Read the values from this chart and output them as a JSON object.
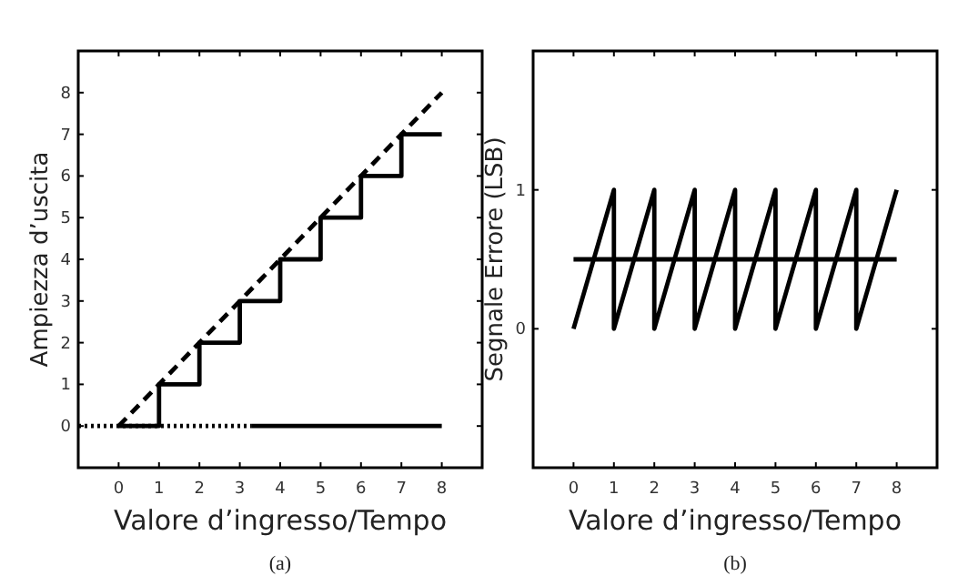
{
  "chart_data": [
    {
      "type": "line",
      "xlabel": "Valore d’ingresso/Tempo",
      "ylabel": "Ampiezza d’uscita",
      "annotations": [
        "(a)"
      ],
      "xlim": [
        -1,
        9
      ],
      "ylim": [
        -1,
        9
      ],
      "xticks": [
        0,
        1,
        2,
        3,
        4,
        5,
        6,
        7,
        8
      ],
      "yticks": [
        0,
        1,
        2,
        3,
        4,
        5,
        6,
        7,
        8
      ],
      "series": [
        {
          "type": "step",
          "color": "#000000",
          "x": [
            0,
            1,
            2,
            3,
            4,
            5,
            6,
            7,
            8
          ],
          "values": [
            0,
            1,
            2,
            3,
            4,
            5,
            6,
            7,
            7
          ],
          "line_style": "solid"
        },
        {
          "color": "#000000",
          "x": [
            0,
            8
          ],
          "values": [
            0,
            8
          ],
          "line_style": "dashed"
        },
        {
          "color": "#000000",
          "x": [
            -1,
            3.3
          ],
          "values": [
            0,
            0
          ],
          "line_style": "dotted"
        },
        {
          "color": "#000000",
          "x": [
            3.3,
            8
          ],
          "values": [
            0,
            0
          ],
          "line_style": "solid"
        }
      ]
    },
    {
      "type": "line",
      "xlabel": "Valore d’ingresso/Tempo",
      "ylabel": "Segnale Errore (LSB)",
      "annotations": [
        "(b)"
      ],
      "xlim": [
        -1,
        9
      ],
      "ylim": [
        -1,
        2
      ],
      "xticks": [
        0,
        1,
        2,
        3,
        4,
        5,
        6,
        7,
        8
      ],
      "yticks": [
        0,
        1
      ],
      "series": [
        {
          "color": "#000000",
          "x": [
            0,
            1,
            1,
            2,
            2,
            3,
            3,
            4,
            4,
            5,
            5,
            6,
            6,
            7,
            7,
            8
          ],
          "values": [
            0,
            1,
            0,
            1,
            0,
            1,
            0,
            1,
            0,
            1,
            0,
            1,
            0,
            1,
            0,
            1
          ],
          "line_style": "solid"
        },
        {
          "color": "#000000",
          "x": [
            0,
            8
          ],
          "values": [
            0.5,
            0.5
          ],
          "line_style": "solid"
        }
      ]
    }
  ]
}
